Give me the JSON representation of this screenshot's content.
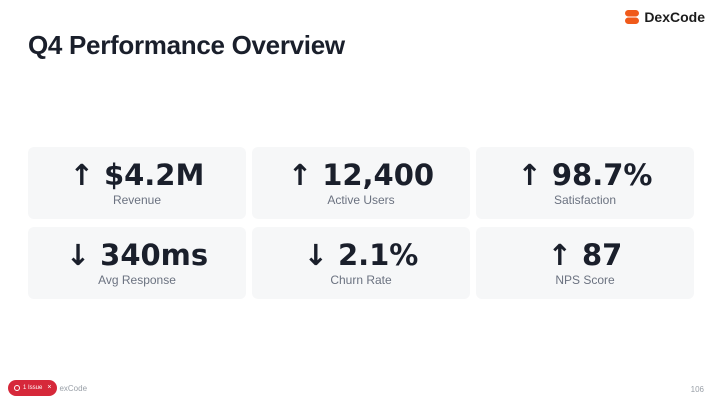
{
  "slide": {
    "title": "Q4 Performance Overview",
    "page_number": "106"
  },
  "brand": {
    "name": "DexCode",
    "logo_icon": "dexcode-logo-icon",
    "logo_color": "#f05a1a"
  },
  "metrics": [
    {
      "arrow": "↑",
      "direction": "up",
      "value": "$4.2M",
      "label": "Revenue"
    },
    {
      "arrow": "↑",
      "direction": "up",
      "value": "12,400",
      "label": "Active Users"
    },
    {
      "arrow": "↑",
      "direction": "up",
      "value": "98.7%",
      "label": "Satisfaction"
    },
    {
      "arrow": "↓",
      "direction": "down",
      "value": "340ms",
      "label": "Avg Response"
    },
    {
      "arrow": "↓",
      "direction": "down",
      "value": "2.1%",
      "label": "Churn Rate"
    },
    {
      "arrow": "↑",
      "direction": "up",
      "value": "87",
      "label": "NPS Score"
    }
  ],
  "footer": {
    "issue_badge": "1 Issue",
    "issue_close": "×",
    "brand_text": "exCode",
    "badge_color": "#d6283a"
  }
}
